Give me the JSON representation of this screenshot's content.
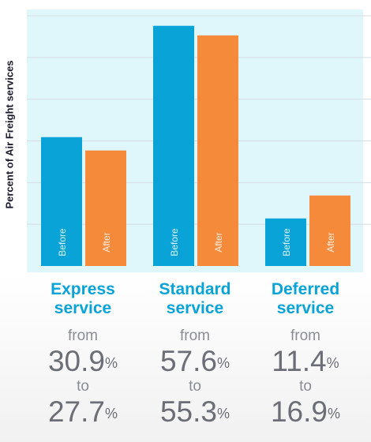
{
  "chart_data": {
    "type": "bar",
    "ylabel": "Percent of Air Freight services",
    "ylim": [
      0,
      60
    ],
    "grid": true,
    "series": [
      {
        "name": "Before",
        "color": "#0aa3d8",
        "values": [
          30.9,
          57.6,
          11.4
        ]
      },
      {
        "name": "After",
        "color": "#f58a3b",
        "values": [
          27.7,
          55.3,
          16.9
        ]
      }
    ],
    "categories": [
      {
        "line1": "Express",
        "line2": "service",
        "from": "30.9",
        "to": "27.7"
      },
      {
        "line1": "Standard",
        "line2": "service",
        "from": "57.6",
        "to": "55.3"
      },
      {
        "line1": "Deferred",
        "line2": "service",
        "from": "11.4",
        "to": "16.9"
      }
    ],
    "panel_color": "#dff6fb"
  },
  "labels": {
    "from_word": "from",
    "to_word": "to",
    "percent": "%"
  }
}
